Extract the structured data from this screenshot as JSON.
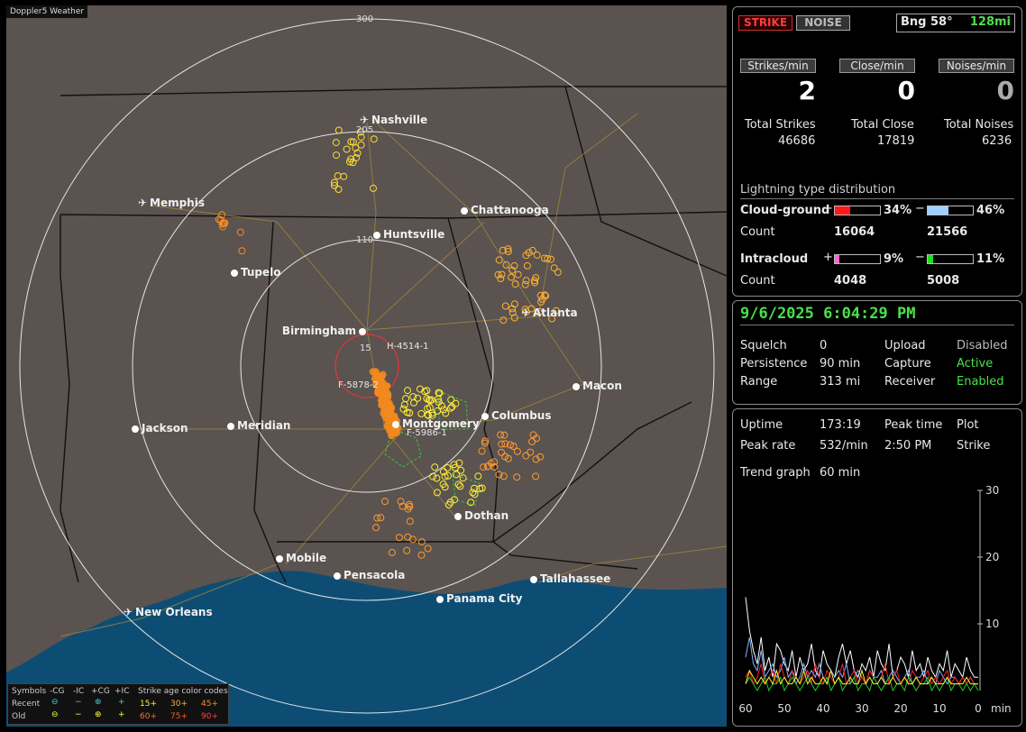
{
  "app": {
    "brand": "Doppler5 Weather"
  },
  "map": {
    "range_labels": [
      "300",
      "205",
      "110",
      "15"
    ],
    "cities": [
      {
        "name": "Nashville",
        "type": "airport"
      },
      {
        "name": "Memphis",
        "type": "airport"
      },
      {
        "name": "Chattanooga",
        "type": "city"
      },
      {
        "name": "Huntsville",
        "type": "city"
      },
      {
        "name": "Tupelo",
        "type": "city"
      },
      {
        "name": "Atlanta",
        "type": "airport"
      },
      {
        "name": "Birmingham",
        "type": "city"
      },
      {
        "name": "Macon",
        "type": "city"
      },
      {
        "name": "Jackson",
        "type": "city"
      },
      {
        "name": "Meridian",
        "type": "city"
      },
      {
        "name": "Montgomery",
        "type": "city"
      },
      {
        "name": "Columbus",
        "type": "city"
      },
      {
        "name": "Dothan",
        "type": "city"
      },
      {
        "name": "Mobile",
        "type": "city"
      },
      {
        "name": "Pensacola",
        "type": "city"
      },
      {
        "name": "Tallahassee",
        "type": "city"
      },
      {
        "name": "Panama City",
        "type": "city"
      },
      {
        "name": "New Orleans",
        "type": "airport"
      }
    ],
    "storm_labels": [
      "H-4514-1",
      "F-5878-2",
      "F-5986-1"
    ]
  },
  "legend": {
    "symbols_label": "Symbols",
    "headers": [
      "-CG",
      "-IC",
      "+CG",
      "+IC"
    ],
    "age_title": "Strike age color codes",
    "recent_label": "Recent",
    "old_label": "Old",
    "recent_ages": [
      "15+",
      "30+",
      "45+"
    ],
    "old_ages": [
      "60+",
      "75+",
      "90+"
    ]
  },
  "panel1": {
    "strike_btn": "STRIKE",
    "noise_btn": "NOISE",
    "bearing": "Bng 58°",
    "distance": "128mi",
    "rate_buttons": [
      "Strikes/min",
      "Close/min",
      "Noises/min"
    ],
    "rates": [
      "2",
      "0",
      "0"
    ],
    "totals_labels": [
      "Total Strikes",
      "Total Close",
      "Total Noises"
    ],
    "totals": [
      "46686",
      "17819",
      "6236"
    ],
    "dist_title": "Lightning type distribution",
    "cg_label": "Cloud-ground",
    "ic_label": "Intracloud",
    "count_label": "Count",
    "plus": "+",
    "minus": "−",
    "cg_pos_pct": "34%",
    "cg_neg_pct": "46%",
    "cg_pos_count": "16064",
    "cg_neg_count": "21566",
    "ic_pos_pct": "9%",
    "ic_neg_pct": "11%",
    "ic_pos_count": "4048",
    "ic_neg_count": "5008",
    "cg_pos_frac": 0.34,
    "cg_neg_frac": 0.46,
    "ic_pos_frac": 0.09,
    "ic_neg_frac": 0.11,
    "colors": {
      "cg_pos": "#ff1a1a",
      "cg_neg": "#9fd0ff",
      "ic_pos": "#ff66cc",
      "ic_neg": "#22dd22"
    }
  },
  "panel2": {
    "datetime": "9/6/2025 6:04:29 PM",
    "squelch_label": "Squelch",
    "squelch": "0",
    "persistence_label": "Persistence",
    "persistence": "90 min",
    "range_label": "Range",
    "range": "313 mi",
    "upload_label": "Upload",
    "upload": "Disabled",
    "capture_label": "Capture",
    "capture": "Active",
    "receiver_label": "Receiver",
    "receiver": "Enabled"
  },
  "panel3": {
    "uptime_label": "Uptime",
    "uptime": "173:19",
    "peak_time_label": "Peak time",
    "peak_time": "2:50 PM",
    "plot_label": "Plot",
    "plot": "Strike",
    "peak_rate_label": "Peak rate",
    "peak_rate": "532/min",
    "trend_label": "Trend graph",
    "trend": "60 min"
  },
  "chart_data": {
    "type": "line",
    "x_ticks": [
      "60",
      "50",
      "40",
      "30",
      "20",
      "10",
      "0"
    ],
    "x_unit": "min",
    "y_ticks": [
      "30",
      "20",
      "10"
    ],
    "ylim": [
      0,
      30
    ],
    "xlim": [
      60,
      0
    ],
    "series": [
      {
        "color": "#ffffff",
        "values": [
          14,
          9,
          6,
          4,
          8,
          3,
          5,
          2,
          7,
          6,
          4,
          3,
          6,
          2,
          5,
          3,
          4,
          7,
          3,
          2,
          6,
          4,
          3,
          2,
          5,
          7,
          4,
          6,
          3,
          2,
          4,
          3,
          5,
          2,
          6,
          4,
          3,
          7,
          2,
          3,
          5,
          4,
          2,
          6,
          3,
          4,
          2,
          5,
          3,
          2,
          4,
          3,
          6,
          2,
          4,
          3,
          2,
          5,
          3,
          2,
          2
        ]
      },
      {
        "color": "#7fb0ff",
        "values": [
          5,
          8,
          4,
          3,
          6,
          2,
          3,
          4,
          2,
          3,
          5,
          2,
          3,
          1,
          2,
          4,
          2,
          3,
          2,
          4,
          2,
          1,
          3,
          2,
          3,
          2,
          4,
          1,
          2,
          3,
          2,
          1,
          3,
          2,
          2,
          3,
          1,
          2,
          3,
          2,
          1,
          2,
          3,
          1,
          2,
          2,
          3,
          1,
          2,
          1,
          3,
          2,
          1,
          2,
          2,
          1,
          2,
          1,
          2,
          1,
          1
        ]
      },
      {
        "color": "#ff2020",
        "values": [
          2,
          3,
          1,
          2,
          4,
          1,
          2,
          3,
          1,
          4,
          2,
          1,
          3,
          2,
          1,
          2,
          3,
          1,
          4,
          2,
          1,
          3,
          2,
          1,
          2,
          4,
          1,
          2,
          3,
          1,
          2,
          1,
          3,
          2,
          1,
          2,
          4,
          1,
          2,
          3,
          1,
          2,
          1,
          3,
          2,
          1,
          2,
          3,
          1,
          2,
          1,
          2,
          3,
          1,
          2,
          1,
          2,
          1,
          2,
          1,
          1
        ]
      },
      {
        "color": "#22cc22",
        "values": [
          1,
          2,
          1,
          0,
          1,
          2,
          0,
          1,
          1,
          2,
          0,
          1,
          2,
          1,
          0,
          1,
          2,
          1,
          0,
          1,
          1,
          2,
          0,
          1,
          2,
          0,
          1,
          1,
          2,
          0,
          1,
          1,
          0,
          2,
          1,
          0,
          1,
          2,
          0,
          1,
          1,
          0,
          2,
          1,
          0,
          1,
          1,
          2,
          0,
          1,
          0,
          1,
          2,
          0,
          1,
          1,
          0,
          1,
          0,
          1,
          0
        ]
      },
      {
        "color": "#ffee33",
        "values": [
          1,
          3,
          2,
          1,
          2,
          1,
          2,
          1,
          3,
          1,
          2,
          1,
          1,
          2,
          1,
          3,
          1,
          2,
          1,
          1,
          2,
          1,
          3,
          1,
          2,
          1,
          1,
          2,
          1,
          1,
          3,
          1,
          2,
          1,
          1,
          2,
          1,
          1,
          2,
          1,
          1,
          2,
          1,
          1,
          2,
          1,
          1,
          1,
          2,
          1,
          1,
          1,
          2,
          1,
          1,
          1,
          1,
          2,
          1,
          1,
          1
        ]
      }
    ]
  }
}
